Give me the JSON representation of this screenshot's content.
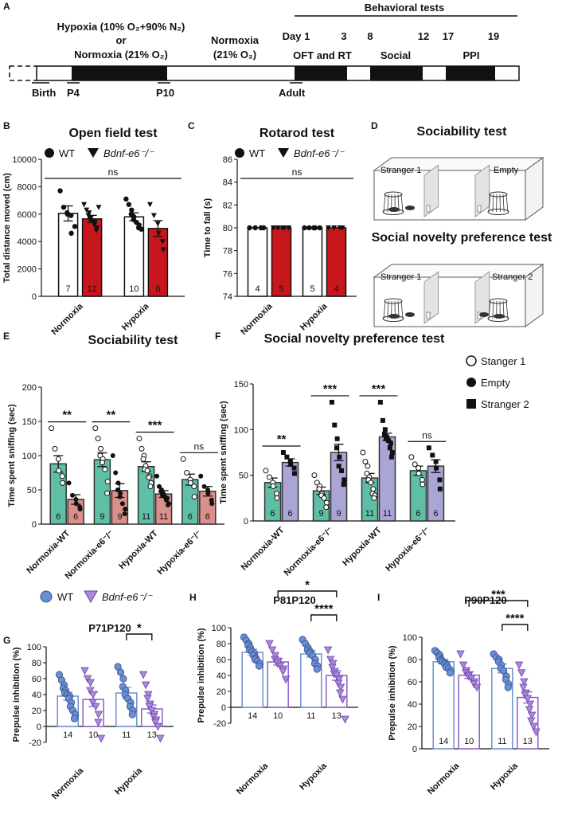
{
  "panelA": {
    "letter": "A",
    "hypoxia_label": "Hypoxia (10% O₂+90% N₂)",
    "or_label": "or",
    "normoxia_label": "Normoxia (21% O₂)",
    "normoxia2_label_l1": "Normoxia",
    "normoxia2_label_l2": "(21% O₂)",
    "behavioral_tests": "Behavioral tests",
    "day_labels": [
      "Day 1",
      "3",
      "8",
      "12",
      "17",
      "19"
    ],
    "test_labels": [
      "OFT and RT",
      "Social",
      "PPI"
    ],
    "stage_labels": [
      "Birth",
      "P4",
      "P10",
      "Adult"
    ]
  },
  "panelD": {
    "letter": "D",
    "title1": "Sociability test",
    "title2": "Social novelty preference test",
    "box1_left": "Stranger 1",
    "box1_right": "Empty",
    "box2_left": "Stranger 1",
    "box2_right": "Stranger 2"
  },
  "legendBC": {
    "wt": "WT",
    "ko": "Bdnf-e6⁻/⁻"
  },
  "legendEF": {
    "s1": "Stanger 1",
    "empty": "Empty",
    "s2": "Stranger 2"
  },
  "legendGHI": {
    "wt": "WT",
    "ko": "Bdnf-e6⁻/⁻"
  },
  "colors": {
    "red": "#c8161d",
    "teal": "#5fbfa6",
    "pink": "#d98f8a",
    "lavender": "#a9a6d6",
    "blue": "#6b8fd0",
    "purple": "#8a5fc6",
    "black": "#111111"
  },
  "chart_data": [
    {
      "id": "B",
      "letter": "B",
      "type": "bar",
      "title": "Open field test",
      "ylabel": "Total distance moved (cm)",
      "ylim": [
        0,
        10000
      ],
      "yticks": [
        0,
        2000,
        4000,
        6000,
        8000,
        10000
      ],
      "groups": [
        "Normoxia",
        "Hypoxia"
      ],
      "bars": [
        {
          "group": 0,
          "series": "WT",
          "mean": 6050,
          "sem": 550,
          "n": "7",
          "points": [
            7700,
            6500,
            6100,
            6000,
            5900,
            4600,
            5100
          ]
        },
        {
          "group": 0,
          "series": "KO",
          "mean": 5650,
          "sem": 260,
          "n": "12",
          "points": [
            6700,
            6300,
            6100,
            5900,
            5700,
            5600,
            5500,
            5400,
            5200,
            5000,
            4800,
            6500
          ]
        },
        {
          "group": 1,
          "series": "WT",
          "mean": 5800,
          "sem": 290,
          "n": "10",
          "points": [
            7100,
            6700,
            6300,
            6000,
            5800,
            5600,
            5400,
            5200,
            5000,
            4900
          ]
        },
        {
          "group": 1,
          "series": "KO",
          "mean": 4950,
          "sem": 580,
          "n": "6",
          "points": [
            6700,
            5900,
            5300,
            4600,
            4000,
            3400
          ]
        }
      ],
      "annotation": "ns"
    },
    {
      "id": "C",
      "letter": "C",
      "type": "bar",
      "title": "Rotarod test",
      "ylabel": "Time to fall (s)",
      "ylim": [
        74,
        86
      ],
      "yticks": [
        74,
        76,
        78,
        80,
        82,
        84,
        86
      ],
      "groups": [
        "Normoxia",
        "Hypoxia"
      ],
      "bars": [
        {
          "group": 0,
          "series": "WT",
          "mean": 80,
          "sem": 0,
          "n": "4",
          "points": [
            80,
            80,
            80,
            80
          ]
        },
        {
          "group": 0,
          "series": "KO",
          "mean": 80,
          "sem": 0,
          "n": "5",
          "points": [
            80,
            80,
            80,
            80,
            80
          ]
        },
        {
          "group": 1,
          "series": "WT",
          "mean": 80,
          "sem": 0,
          "n": "5",
          "points": [
            80,
            80,
            80,
            80,
            80
          ]
        },
        {
          "group": 1,
          "series": "KO",
          "mean": 80,
          "sem": 0,
          "n": "4",
          "points": [
            80,
            80,
            80,
            80
          ]
        }
      ],
      "annotation": "ns"
    },
    {
      "id": "E",
      "letter": "E",
      "type": "bar",
      "title": "Sociability test",
      "ylabel": "Time spent sniffing (sec)",
      "ylim": [
        0,
        200
      ],
      "yticks": [
        0,
        50,
        100,
        150,
        200
      ],
      "groups": [
        "Normoxia-WT",
        "Normoxia-e6⁻/⁻",
        "Hypoxia-WT",
        "Hypoxia-e6⁻/⁻"
      ],
      "bars": [
        {
          "group": 0,
          "series": "S1",
          "mean": 88,
          "sem": 12,
          "n": "6",
          "points": [
            140,
            110,
            95,
            78,
            70,
            60
          ]
        },
        {
          "group": 0,
          "series": "Empty",
          "mean": 36,
          "sem": 7,
          "n": "6",
          "points": [
            60,
            42,
            36,
            30,
            25,
            22
          ]
        },
        {
          "group": 1,
          "series": "S1",
          "mean": 94,
          "sem": 10,
          "n": "9",
          "points": [
            140,
            125,
            110,
            100,
            95,
            90,
            80,
            62,
            45
          ]
        },
        {
          "group": 1,
          "series": "Empty",
          "mean": 49,
          "sem": 10,
          "n": "9",
          "points": [
            100,
            75,
            60,
            50,
            45,
            40,
            30,
            22,
            15
          ]
        },
        {
          "group": 2,
          "series": "S1",
          "mean": 84,
          "sem": 7,
          "n": "11",
          "points": [
            125,
            110,
            100,
            95,
            85,
            80,
            78,
            70,
            68,
            60,
            55
          ]
        },
        {
          "group": 2,
          "series": "Empty",
          "mean": 44,
          "sem": 5,
          "n": "11",
          "points": [
            70,
            55,
            50,
            48,
            45,
            42,
            40,
            38,
            35,
            30,
            28
          ]
        },
        {
          "group": 3,
          "series": "S1",
          "mean": 65,
          "sem": 8,
          "n": "6",
          "points": [
            95,
            75,
            65,
            60,
            55,
            40
          ]
        },
        {
          "group": 3,
          "series": "Empty",
          "mean": 48,
          "sem": 7,
          "n": "6",
          "points": [
            70,
            55,
            50,
            45,
            35,
            30
          ]
        }
      ],
      "sig": [
        "**",
        "**",
        "***",
        "ns"
      ]
    },
    {
      "id": "F",
      "letter": "F",
      "type": "bar",
      "title": "Social novelty preference test",
      "ylabel": "Time spent sniffing (sec)",
      "ylim": [
        0,
        150
      ],
      "yticks": [
        0,
        50,
        100,
        150
      ],
      "groups": [
        "Normoxia-WT",
        "Normoxia-e6⁻/⁻",
        "Hypoxia-WT",
        "Hypoxia-e6⁻/⁻"
      ],
      "bars": [
        {
          "group": 0,
          "series": "S1",
          "mean": 42,
          "sem": 5,
          "n": "6",
          "points": [
            55,
            48,
            42,
            38,
            30,
            25
          ]
        },
        {
          "group": 0,
          "series": "S2",
          "mean": 64,
          "sem": 4,
          "n": "6",
          "points": [
            75,
            70,
            65,
            62,
            58,
            52
          ]
        },
        {
          "group": 1,
          "series": "S1",
          "mean": 33,
          "sem": 4,
          "n": "9",
          "points": [
            50,
            42,
            38,
            35,
            30,
            28,
            25,
            20,
            15
          ]
        },
        {
          "group": 1,
          "series": "S2",
          "mean": 75,
          "sem": 9,
          "n": "9",
          "points": [
            130,
            105,
            90,
            80,
            70,
            60,
            55,
            45,
            40
          ]
        },
        {
          "group": 2,
          "series": "S1",
          "mean": 47,
          "sem": 5,
          "n": "11",
          "points": [
            75,
            65,
            60,
            52,
            48,
            45,
            42,
            35,
            30,
            28,
            25
          ]
        },
        {
          "group": 2,
          "series": "S2",
          "mean": 92,
          "sem": 4,
          "n": "11",
          "points": [
            130,
            110,
            100,
            95,
            92,
            90,
            88,
            85,
            80,
            75,
            70
          ]
        },
        {
          "group": 3,
          "series": "S1",
          "mean": 55,
          "sem": 5,
          "n": "6",
          "points": [
            70,
            62,
            58,
            52,
            45,
            40
          ]
        },
        {
          "group": 3,
          "series": "S2",
          "mean": 60,
          "sem": 7,
          "n": "6",
          "points": [
            80,
            72,
            65,
            58,
            45,
            35
          ]
        }
      ],
      "sig": [
        "**",
        "***",
        "***",
        "ns"
      ]
    },
    {
      "id": "G",
      "letter": "G",
      "type": "bar",
      "title": "P71P120",
      "ylabel": "Prepulse inhibition (%)",
      "ylim": [
        -20,
        100
      ],
      "yticks": [
        -20,
        0,
        20,
        40,
        60,
        80,
        100
      ],
      "groups": [
        "Normoxia",
        "Hypoxia"
      ],
      "bars": [
        {
          "group": 0,
          "series": "WT",
          "mean": 38,
          "sem": 5,
          "n": "14",
          "points": [
            65,
            58,
            52,
            48,
            45,
            42,
            40,
            38,
            35,
            30,
            25,
            20,
            15,
            10
          ]
        },
        {
          "group": 0,
          "series": "KO",
          "mean": 34,
          "sem": 9,
          "n": "10",
          "points": [
            70,
            60,
            55,
            45,
            40,
            30,
            25,
            15,
            5,
            -15
          ]
        },
        {
          "group": 1,
          "series": "WT",
          "mean": 42,
          "sem": 7,
          "n": "11",
          "points": [
            75,
            68,
            60,
            50,
            45,
            40,
            35,
            30,
            25,
            20,
            15
          ]
        },
        {
          "group": 1,
          "series": "KO",
          "mean": 22,
          "sem": 5,
          "n": "13",
          "points": [
            65,
            52,
            40,
            35,
            28,
            25,
            20,
            15,
            12,
            8,
            5,
            0,
            -15
          ]
        }
      ],
      "sig": [
        {
          "label": "*",
          "a": 2,
          "b": 3
        }
      ]
    },
    {
      "id": "H",
      "letter": "H",
      "type": "bar",
      "title": "P81P120",
      "ylabel": "Prepulse inhibition (%)",
      "ylim": [
        -20,
        100
      ],
      "yticks": [
        -20,
        0,
        20,
        40,
        60,
        80,
        100
      ],
      "groups": [
        "Normoxia",
        "Hypoxia"
      ],
      "bars": [
        {
          "group": 0,
          "series": "WT",
          "mean": 69,
          "sem": 4,
          "n": "14",
          "points": [
            88,
            84,
            80,
            78,
            75,
            72,
            70,
            68,
            65,
            62,
            60,
            58,
            55,
            52
          ]
        },
        {
          "group": 0,
          "series": "KO",
          "mean": 57,
          "sem": 4,
          "n": "10",
          "points": [
            80,
            72,
            65,
            60,
            58,
            55,
            52,
            48,
            45,
            35
          ]
        },
        {
          "group": 1,
          "series": "WT",
          "mean": 67,
          "sem": 4,
          "n": "11",
          "points": [
            85,
            80,
            75,
            72,
            70,
            68,
            65,
            60,
            55,
            52,
            48
          ]
        },
        {
          "group": 1,
          "series": "KO",
          "mean": 40,
          "sem": 6,
          "n": "13",
          "points": [
            72,
            60,
            55,
            50,
            45,
            42,
            40,
            35,
            30,
            25,
            18,
            10,
            -15
          ]
        }
      ],
      "sig": [
        {
          "label": "****",
          "a": 2,
          "b": 3
        },
        {
          "label": "*",
          "a": 1,
          "b": 3
        }
      ]
    },
    {
      "id": "I",
      "letter": "I",
      "type": "bar",
      "title": "P90P120",
      "ylabel": "Prepulse inhibition (%)",
      "ylim": [
        0,
        100
      ],
      "yticks": [
        0,
        20,
        40,
        60,
        80,
        100
      ],
      "groups": [
        "Normoxia",
        "Hypoxia"
      ],
      "bars": [
        {
          "group": 0,
          "series": "WT",
          "mean": 78,
          "sem": 2,
          "n": "14",
          "points": [
            88,
            86,
            84,
            82,
            80,
            79,
            78,
            77,
            76,
            75,
            73,
            72,
            70,
            68
          ]
        },
        {
          "group": 0,
          "series": "KO",
          "mean": 66,
          "sem": 3,
          "n": "10",
          "points": [
            85,
            75,
            70,
            68,
            66,
            65,
            63,
            60,
            58,
            55
          ]
        },
        {
          "group": 1,
          "series": "WT",
          "mean": 72,
          "sem": 4,
          "n": "11",
          "points": [
            85,
            82,
            80,
            78,
            75,
            72,
            70,
            65,
            62,
            58,
            55
          ]
        },
        {
          "group": 1,
          "series": "KO",
          "mean": 46,
          "sem": 5,
          "n": "13",
          "points": [
            75,
            68,
            60,
            55,
            50,
            48,
            45,
            40,
            35,
            30,
            25,
            20,
            15
          ]
        }
      ],
      "sig": [
        {
          "label": "****",
          "a": 2,
          "b": 3
        },
        {
          "label": "***",
          "a": 1,
          "b": 3
        }
      ]
    }
  ]
}
